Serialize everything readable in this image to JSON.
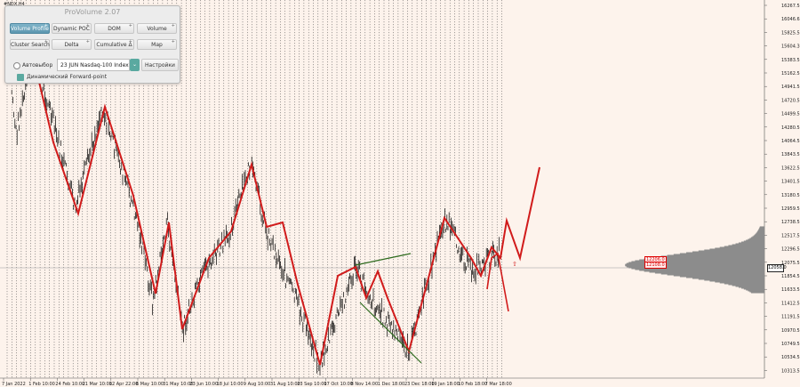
{
  "symbol": "#NDX,H4",
  "panel": {
    "title": "ProVolume 2.07",
    "buttons": [
      {
        "label": "Volume Profile",
        "active": true
      },
      {
        "label": "Dynamic POC",
        "active": false
      },
      {
        "label": "DOM",
        "active": false
      },
      {
        "label": "Volume",
        "active": false
      },
      {
        "label": "Cluster Search",
        "active": false
      },
      {
        "label": "Delta",
        "active": false
      },
      {
        "label": "Cumulative Δ",
        "active": false
      },
      {
        "label": "Map",
        "active": false
      }
    ],
    "auto_label": "Автовыбор",
    "instrument": "23 JUN Nasdaq-100 Index",
    "settings_label": "Настройки",
    "forward_label": "Динамический Forward-point"
  },
  "price_axis": [
    "16267.5",
    "16046.6",
    "15825.5",
    "15604.3",
    "15383.5",
    "15162.5",
    "14941.5",
    "14720.5",
    "14499.5",
    "14280.5",
    "14064.5",
    "13843.5",
    "13622.5",
    "13401.5",
    "13180.5",
    "12959.5",
    "12738.5",
    "12517.5",
    "12296.5",
    "12075.5",
    "11854.5",
    "11633.5",
    "11412.5",
    "11191.5",
    "10970.5",
    "10749.5",
    "10534.5",
    "10313.5"
  ],
  "current_price": "12058.0",
  "level_tags": [
    "12206.0",
    "12108.0"
  ],
  "time_axis": [
    "7 Jan 2022",
    "1 Feb 10:00",
    "24 Feb 10:00",
    "21 Mar 10:00",
    "12 Apr 22:00",
    "6 May 10:00",
    "31 May 10:00",
    "23 Jun 10:00",
    "18 Jul 10:00",
    "9 Aug 10:00",
    "31 Aug 10:00",
    "23 Sep 10:00",
    "17 Oct 10:00",
    "8 Nov 14:00",
    "1 Dec 18:00",
    "23 Dec 18:00",
    "19 Jan 18:00",
    "10 Feb 18:00",
    "7 Mar 18:00"
  ],
  "colors": {
    "background": "#fdf3ec",
    "zigzag": "#d11b1b",
    "trendline": "#2e6b1e",
    "candles": "#000000",
    "profile": "#8c8c8c",
    "accent": "#5aa9a0"
  }
}
